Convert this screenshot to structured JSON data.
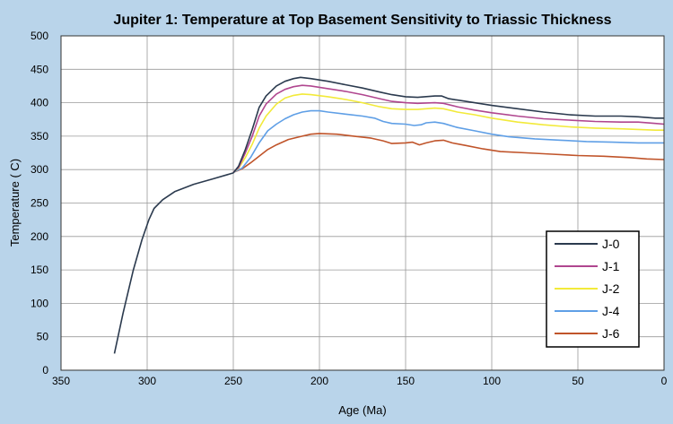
{
  "chart_data": {
    "type": "line",
    "title": "Jupiter 1: Temperature at Top Basement Sensitivity to Triassic Thickness",
    "xlabel": "Age (Ma)",
    "ylabel": "Temperature ( C)",
    "xlim": [
      350,
      0
    ],
    "ylim": [
      0,
      500
    ],
    "x_ticks": [
      350,
      300,
      250,
      200,
      150,
      100,
      50,
      0
    ],
    "y_ticks": [
      0,
      50,
      100,
      150,
      200,
      250,
      300,
      350,
      400,
      450,
      500
    ],
    "grid": true,
    "legend_position": "right",
    "plot_background": "#ffffff",
    "page_background": "#b9d4ea",
    "series": [
      {
        "name": "J-0",
        "color": "#2b3a4e",
        "points": [
          [
            319,
            25
          ],
          [
            314,
            85
          ],
          [
            308,
            150
          ],
          [
            303,
            195
          ],
          [
            299,
            225
          ],
          [
            296,
            242
          ],
          [
            291,
            255
          ],
          [
            284,
            267
          ],
          [
            273,
            278
          ],
          [
            262,
            286
          ],
          [
            250,
            295
          ],
          [
            247,
            305
          ],
          [
            243,
            330
          ],
          [
            239,
            360
          ],
          [
            235,
            393
          ],
          [
            231,
            410
          ],
          [
            225,
            425
          ],
          [
            220,
            432
          ],
          [
            215,
            436
          ],
          [
            211,
            438
          ],
          [
            205,
            436
          ],
          [
            195,
            432
          ],
          [
            185,
            427
          ],
          [
            175,
            422
          ],
          [
            165,
            416
          ],
          [
            158,
            412
          ],
          [
            150,
            409
          ],
          [
            143,
            408
          ],
          [
            133,
            410
          ],
          [
            129,
            410
          ],
          [
            125,
            406
          ],
          [
            115,
            402
          ],
          [
            100,
            396
          ],
          [
            85,
            391
          ],
          [
            70,
            386
          ],
          [
            55,
            382
          ],
          [
            40,
            380
          ],
          [
            25,
            380
          ],
          [
            15,
            379
          ],
          [
            5,
            377
          ],
          [
            0,
            377
          ]
        ]
      },
      {
        "name": "J-1",
        "color": "#b0468f",
        "points": [
          [
            250,
            296
          ],
          [
            247,
            303
          ],
          [
            243,
            325
          ],
          [
            239,
            350
          ],
          [
            235,
            380
          ],
          [
            231,
            398
          ],
          [
            225,
            413
          ],
          [
            220,
            420
          ],
          [
            215,
            424
          ],
          [
            210,
            426
          ],
          [
            205,
            425
          ],
          [
            195,
            421
          ],
          [
            185,
            417
          ],
          [
            175,
            412
          ],
          [
            165,
            406
          ],
          [
            158,
            402
          ],
          [
            150,
            400
          ],
          [
            143,
            399
          ],
          [
            133,
            400
          ],
          [
            128,
            399
          ],
          [
            120,
            394
          ],
          [
            110,
            389
          ],
          [
            100,
            385
          ],
          [
            85,
            380
          ],
          [
            70,
            376
          ],
          [
            55,
            374
          ],
          [
            40,
            372
          ],
          [
            25,
            371
          ],
          [
            15,
            371
          ],
          [
            5,
            369
          ],
          [
            0,
            368
          ]
        ]
      },
      {
        "name": "J-2",
        "color": "#f2ea3a",
        "points": [
          [
            250,
            296
          ],
          [
            247,
            302
          ],
          [
            243,
            318
          ],
          [
            239,
            338
          ],
          [
            235,
            362
          ],
          [
            231,
            380
          ],
          [
            225,
            398
          ],
          [
            220,
            407
          ],
          [
            215,
            411
          ],
          [
            210,
            413
          ],
          [
            205,
            412
          ],
          [
            195,
            409
          ],
          [
            185,
            405
          ],
          [
            175,
            400
          ],
          [
            165,
            394
          ],
          [
            158,
            391
          ],
          [
            150,
            390
          ],
          [
            143,
            390
          ],
          [
            133,
            392
          ],
          [
            128,
            391
          ],
          [
            120,
            386
          ],
          [
            110,
            382
          ],
          [
            100,
            377
          ],
          [
            85,
            371
          ],
          [
            70,
            367
          ],
          [
            55,
            364
          ],
          [
            40,
            362
          ],
          [
            25,
            361
          ],
          [
            15,
            360
          ],
          [
            5,
            359
          ],
          [
            0,
            359
          ]
        ]
      },
      {
        "name": "J-4",
        "color": "#5f9fe6",
        "points": [
          [
            250,
            296
          ],
          [
            245,
            302
          ],
          [
            240,
            318
          ],
          [
            235,
            340
          ],
          [
            230,
            358
          ],
          [
            225,
            368
          ],
          [
            220,
            376
          ],
          [
            215,
            382
          ],
          [
            210,
            386
          ],
          [
            205,
            388
          ],
          [
            200,
            388
          ],
          [
            195,
            386
          ],
          [
            185,
            383
          ],
          [
            175,
            380
          ],
          [
            168,
            377
          ],
          [
            163,
            372
          ],
          [
            158,
            369
          ],
          [
            150,
            368
          ],
          [
            145,
            366
          ],
          [
            141,
            367
          ],
          [
            138,
            370
          ],
          [
            133,
            371
          ],
          [
            128,
            369
          ],
          [
            120,
            363
          ],
          [
            110,
            358
          ],
          [
            100,
            353
          ],
          [
            90,
            349
          ],
          [
            75,
            346
          ],
          [
            60,
            344
          ],
          [
            45,
            342
          ],
          [
            30,
            341
          ],
          [
            15,
            340
          ],
          [
            5,
            340
          ],
          [
            0,
            340
          ]
        ]
      },
      {
        "name": "J-6",
        "color": "#c0542a",
        "points": [
          [
            250,
            296
          ],
          [
            245,
            301
          ],
          [
            240,
            310
          ],
          [
            235,
            320
          ],
          [
            230,
            330
          ],
          [
            225,
            337
          ],
          [
            218,
            345
          ],
          [
            210,
            350
          ],
          [
            205,
            353
          ],
          [
            200,
            354
          ],
          [
            190,
            353
          ],
          [
            180,
            350
          ],
          [
            170,
            347
          ],
          [
            163,
            343
          ],
          [
            158,
            339
          ],
          [
            150,
            340
          ],
          [
            146,
            341
          ],
          [
            142,
            337
          ],
          [
            138,
            340
          ],
          [
            133,
            343
          ],
          [
            128,
            344
          ],
          [
            123,
            340
          ],
          [
            115,
            336
          ],
          [
            105,
            331
          ],
          [
            95,
            327
          ],
          [
            80,
            325
          ],
          [
            65,
            323
          ],
          [
            50,
            321
          ],
          [
            35,
            320
          ],
          [
            20,
            318
          ],
          [
            10,
            316
          ],
          [
            0,
            315
          ]
        ]
      }
    ]
  }
}
